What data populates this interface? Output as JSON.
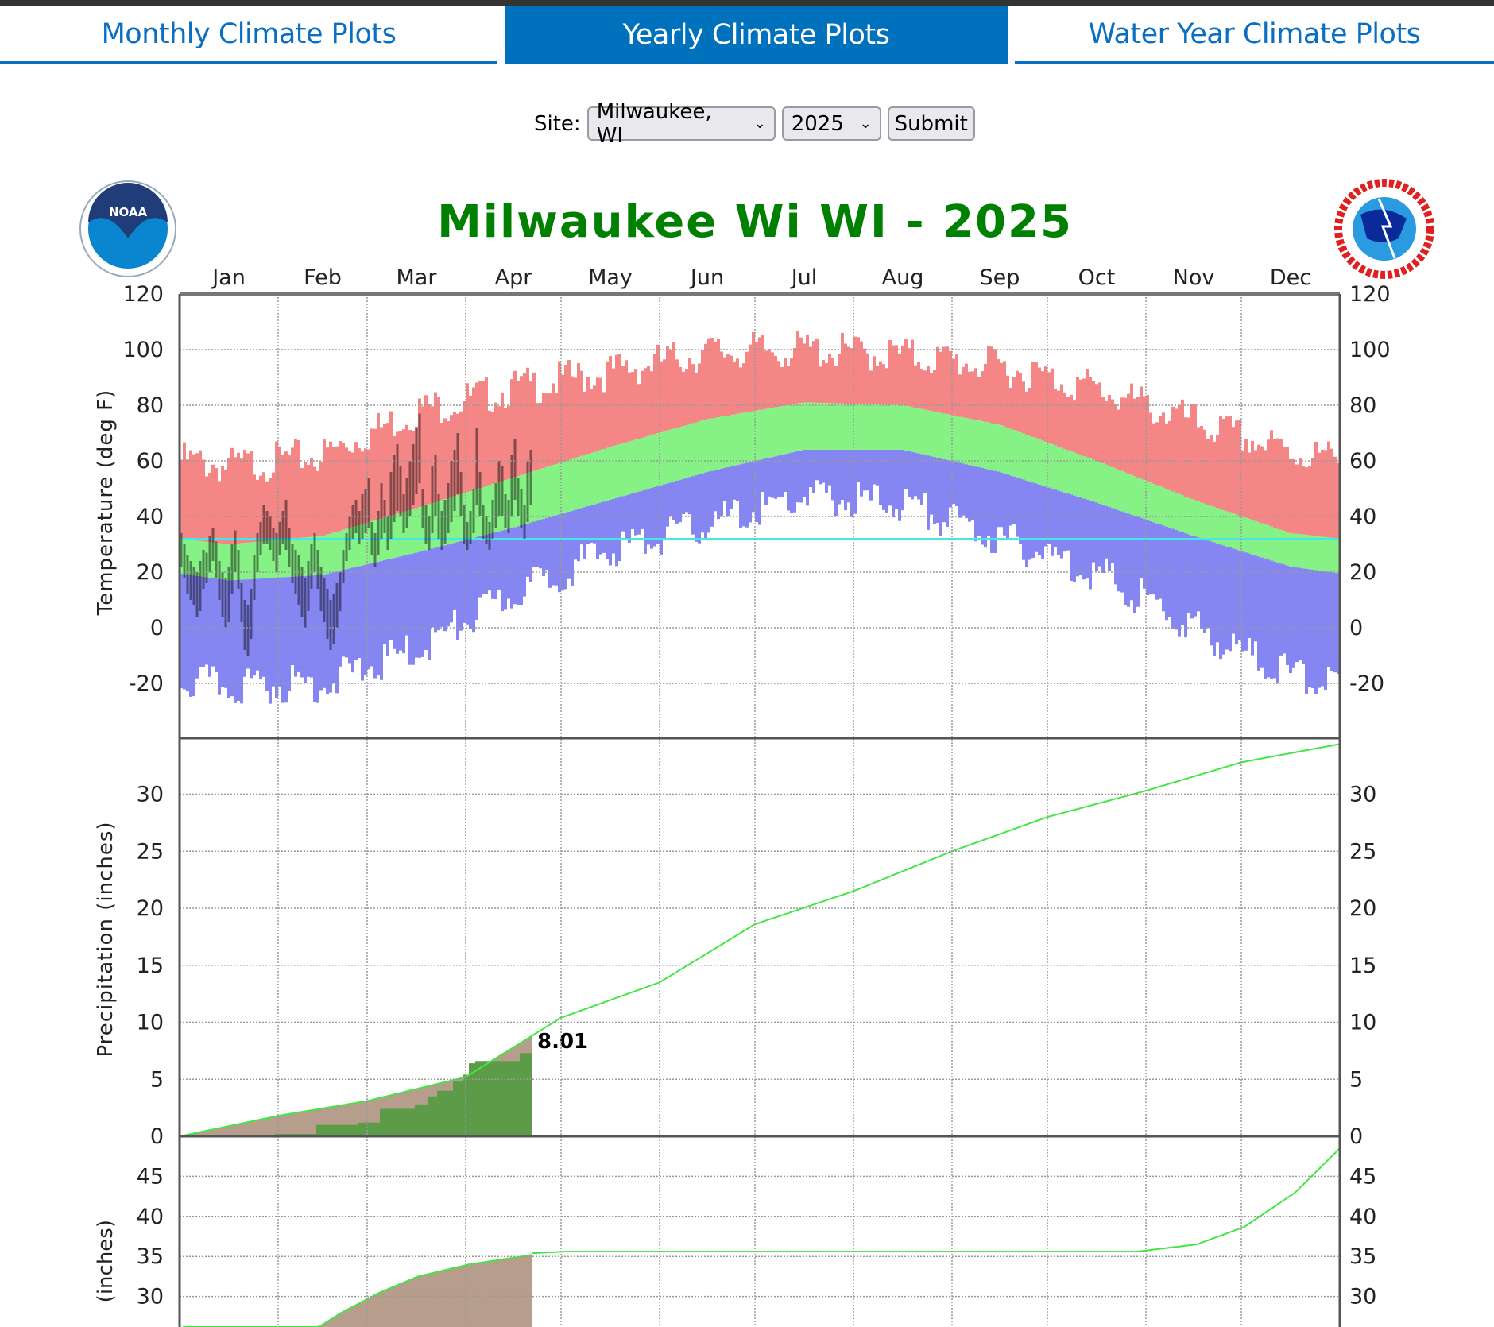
{
  "tabs": [
    {
      "label": "Monthly Climate Plots",
      "active": false
    },
    {
      "label": "Yearly Climate Plots",
      "active": true
    },
    {
      "label": "Water Year Climate Plots",
      "active": false
    }
  ],
  "form": {
    "site_label": "Site:",
    "site_value": "Milwaukee, WI",
    "year_value": "2025",
    "submit_label": "Submit"
  },
  "logos": {
    "left": "NOAA",
    "right": "NATIONAL WEATHER SERVICE"
  },
  "colors": {
    "accent": "#0071bc",
    "title": "#008000",
    "record_high": "#f48686",
    "normal": "#86f286",
    "record_low": "#8686f2",
    "observed": "#000000",
    "freezing": "#44e8e8",
    "precip_normal_area": "#b79d8c",
    "precip_observed": "#5c9c48",
    "normal_line": "#44e644"
  },
  "chart_data": [
    {
      "type": "bar",
      "title": "Milwaukee  Wi WI - 2025",
      "months": [
        "Jan",
        "Feb",
        "Mar",
        "Apr",
        "May",
        "Jun",
        "Jul",
        "Aug",
        "Sep",
        "Oct",
        "Nov",
        "Dec"
      ],
      "ylabel": "Temperature (deg F)",
      "ylim": [
        -40,
        120
      ],
      "yticks": [
        -20,
        0,
        20,
        40,
        60,
        80,
        100,
        120
      ],
      "grid": true,
      "freezing_line": 32,
      "monthly_normal_high": [
        30,
        33,
        43,
        54,
        65,
        75,
        81,
        80,
        73,
        60,
        46,
        34
      ],
      "monthly_normal_low": [
        17,
        19,
        27,
        36,
        46,
        56,
        64,
        64,
        56,
        45,
        33,
        22
      ],
      "monthly_record_high": [
        58,
        62,
        78,
        86,
        92,
        99,
        100,
        98,
        94,
        86,
        74,
        63
      ],
      "monthly_record_low": [
        -21,
        -20,
        -8,
        12,
        28,
        37,
        47,
        45,
        32,
        20,
        0,
        -17
      ],
      "observed_high": [
        34,
        30,
        26,
        24,
        22,
        20,
        24,
        28,
        27,
        33,
        36,
        31,
        24,
        20,
        18,
        22,
        30,
        35,
        28,
        16,
        10,
        8,
        14,
        26,
        34,
        38,
        44,
        42,
        40,
        36,
        34,
        38,
        42,
        46,
        36,
        30,
        28,
        26,
        22,
        18,
        24,
        30,
        34,
        28,
        22,
        18,
        14,
        10,
        12,
        16,
        20,
        28,
        34,
        40,
        44,
        46,
        42,
        48,
        50,
        54,
        38,
        34,
        42,
        52,
        46,
        40,
        56,
        62,
        66,
        58,
        48,
        54,
        60,
        66,
        72,
        77,
        50,
        44,
        40,
        58,
        62,
        48,
        42,
        46,
        52,
        60,
        64,
        70,
        56,
        44,
        38,
        42,
        50,
        72,
        56,
        44,
        40,
        38,
        46,
        52,
        60,
        58,
        48,
        46,
        62,
        68,
        54,
        50,
        44,
        60,
        64
      ],
      "observed_low": [
        22,
        18,
        12,
        10,
        8,
        4,
        6,
        14,
        16,
        20,
        24,
        18,
        10,
        4,
        0,
        2,
        12,
        20,
        14,
        2,
        -8,
        -10,
        -4,
        10,
        20,
        26,
        30,
        30,
        28,
        24,
        20,
        26,
        30,
        28,
        22,
        16,
        12,
        8,
        4,
        0,
        6,
        14,
        20,
        14,
        6,
        2,
        -4,
        -8,
        -6,
        0,
        6,
        16,
        24,
        28,
        32,
        34,
        30,
        32,
        34,
        36,
        26,
        22,
        26,
        32,
        34,
        28,
        32,
        38,
        42,
        40,
        34,
        36,
        40,
        44,
        48,
        52,
        36,
        30,
        28,
        34,
        40,
        32,
        28,
        30,
        34,
        38,
        42,
        48,
        40,
        30,
        28,
        30,
        34,
        44,
        40,
        32,
        30,
        28,
        32,
        36,
        40,
        40,
        36,
        34,
        40,
        46,
        40,
        36,
        32,
        38,
        44
      ]
    },
    {
      "type": "area",
      "ylabel": "Precipitation (inches)",
      "ylim": [
        0,
        35
      ],
      "yticks": [
        0,
        5,
        10,
        15,
        20,
        25,
        30
      ],
      "normal_cumulative_month_start": [
        0,
        1.8,
        3.1,
        5.2,
        10.4,
        13.5,
        18.6,
        21.5,
        25.0,
        28.0,
        30.3,
        32.8,
        34.4
      ],
      "observed_cumulative_steps": [
        [
          1,
          0
        ],
        [
          10,
          0.1
        ],
        [
          30,
          0.2
        ],
        [
          43,
          1.0
        ],
        [
          56,
          1.2
        ],
        [
          63,
          2.4
        ],
        [
          74,
          2.8
        ],
        [
          78,
          3.5
        ],
        [
          81,
          4.0
        ],
        [
          86,
          4.8
        ],
        [
          89,
          5.4
        ],
        [
          91,
          6.4
        ],
        [
          93,
          6.6
        ],
        [
          107,
          7.3
        ],
        [
          111,
          8.01
        ]
      ],
      "observed_total_label": "8.01"
    },
    {
      "type": "area",
      "ylabel": "(inches)",
      "ylim": [
        25,
        50
      ],
      "yticks": [
        30,
        35,
        40,
        45
      ],
      "observed_cumulative": [
        [
          1,
          18
        ],
        [
          39,
          25
        ],
        [
          51,
          28
        ],
        [
          63,
          30.5
        ],
        [
          75,
          32.5
        ],
        [
          91,
          34
        ],
        [
          111,
          35.2
        ]
      ],
      "normal_cumulative": [
        [
          111,
          35.4
        ],
        [
          121,
          35.6
        ],
        [
          301,
          35.6
        ],
        [
          320,
          36.5
        ],
        [
          335,
          38.7
        ],
        [
          351,
          43
        ],
        [
          365,
          48.5
        ]
      ]
    }
  ]
}
